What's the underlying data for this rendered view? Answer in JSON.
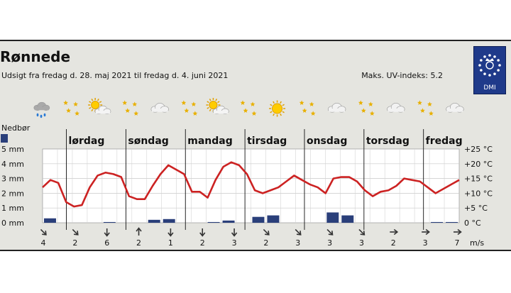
{
  "header": {
    "location": "Rønnede",
    "period": "Udsigt fra fredag d. 28. maj 2021 til fredag d. 4. juni 2021",
    "uv_index": "Maks. UV-indeks: 5.2",
    "logo_text": "DMI"
  },
  "legend": {
    "precip_label": "Nedbør"
  },
  "weather_icons": [
    "rain-cloud",
    "stars",
    "partly-cloudy",
    "stars",
    "cloudy",
    "stars",
    "partly-cloudy",
    "stars",
    "sun",
    "stars",
    "cloudy",
    "stars",
    "cloudy",
    "stars",
    "cloudy"
  ],
  "colors": {
    "temperature": "#cc2222",
    "precipitation": "#2a3f7a",
    "panel": "#e5e5e0"
  },
  "chart_data": {
    "type": "line",
    "days": [
      "lørdag",
      "søndag",
      "mandag",
      "tirsdag",
      "onsdag",
      "torsdag",
      "fredag"
    ],
    "temperature": {
      "unit": "°C",
      "ylim": [
        0,
        25
      ],
      "ticks": [
        "+25 °C",
        "+20 °C",
        "+15 °C",
        "+10 °C",
        "+5 °C",
        "0 °C"
      ],
      "values": [
        12,
        14.5,
        13.5,
        7,
        5.5,
        6,
        12,
        16,
        17,
        16.5,
        15.5,
        9,
        8,
        8,
        12.5,
        16.5,
        19.5,
        18,
        16.5,
        10.5,
        10.5,
        8.5,
        14.5,
        19,
        20.5,
        19.5,
        16.5,
        11,
        10,
        11,
        12,
        14,
        16,
        14.5,
        13,
        12,
        10,
        15,
        15.5,
        15.5,
        14,
        11,
        9,
        10.5,
        11,
        12.5,
        15,
        14.5,
        14,
        12,
        10,
        11.5,
        13,
        14.5
      ]
    },
    "precipitation": {
      "unit": "mm",
      "ylim": [
        0,
        5
      ],
      "ticks": [
        "5 mm",
        "4 mm",
        "3 mm",
        "2 mm",
        "1 mm",
        "0 mm"
      ],
      "bars": [
        {
          "index": 0,
          "value": 0.3
        },
        {
          "index": 4,
          "value": 0.05
        },
        {
          "index": 7,
          "value": 0.2
        },
        {
          "index": 8,
          "value": 0.25
        },
        {
          "index": 11,
          "value": 0.05
        },
        {
          "index": 12,
          "value": 0.15
        },
        {
          "index": 14,
          "value": 0.4
        },
        {
          "index": 15,
          "value": 0.5
        },
        {
          "index": 19,
          "value": 0.7
        },
        {
          "index": 20,
          "value": 0.5
        },
        {
          "index": 26,
          "value": 0.05
        },
        {
          "index": 27,
          "value": 0.05
        }
      ]
    },
    "wind": {
      "unit": "m/s",
      "speeds": [
        "4",
        "2",
        "6",
        "2",
        "1",
        "2",
        "3",
        "2",
        "3",
        "3",
        "3",
        "2",
        "3",
        "7"
      ],
      "directions_deg": [
        315,
        315,
        0,
        180,
        0,
        0,
        0,
        315,
        315,
        315,
        315,
        270,
        270,
        270
      ]
    }
  }
}
